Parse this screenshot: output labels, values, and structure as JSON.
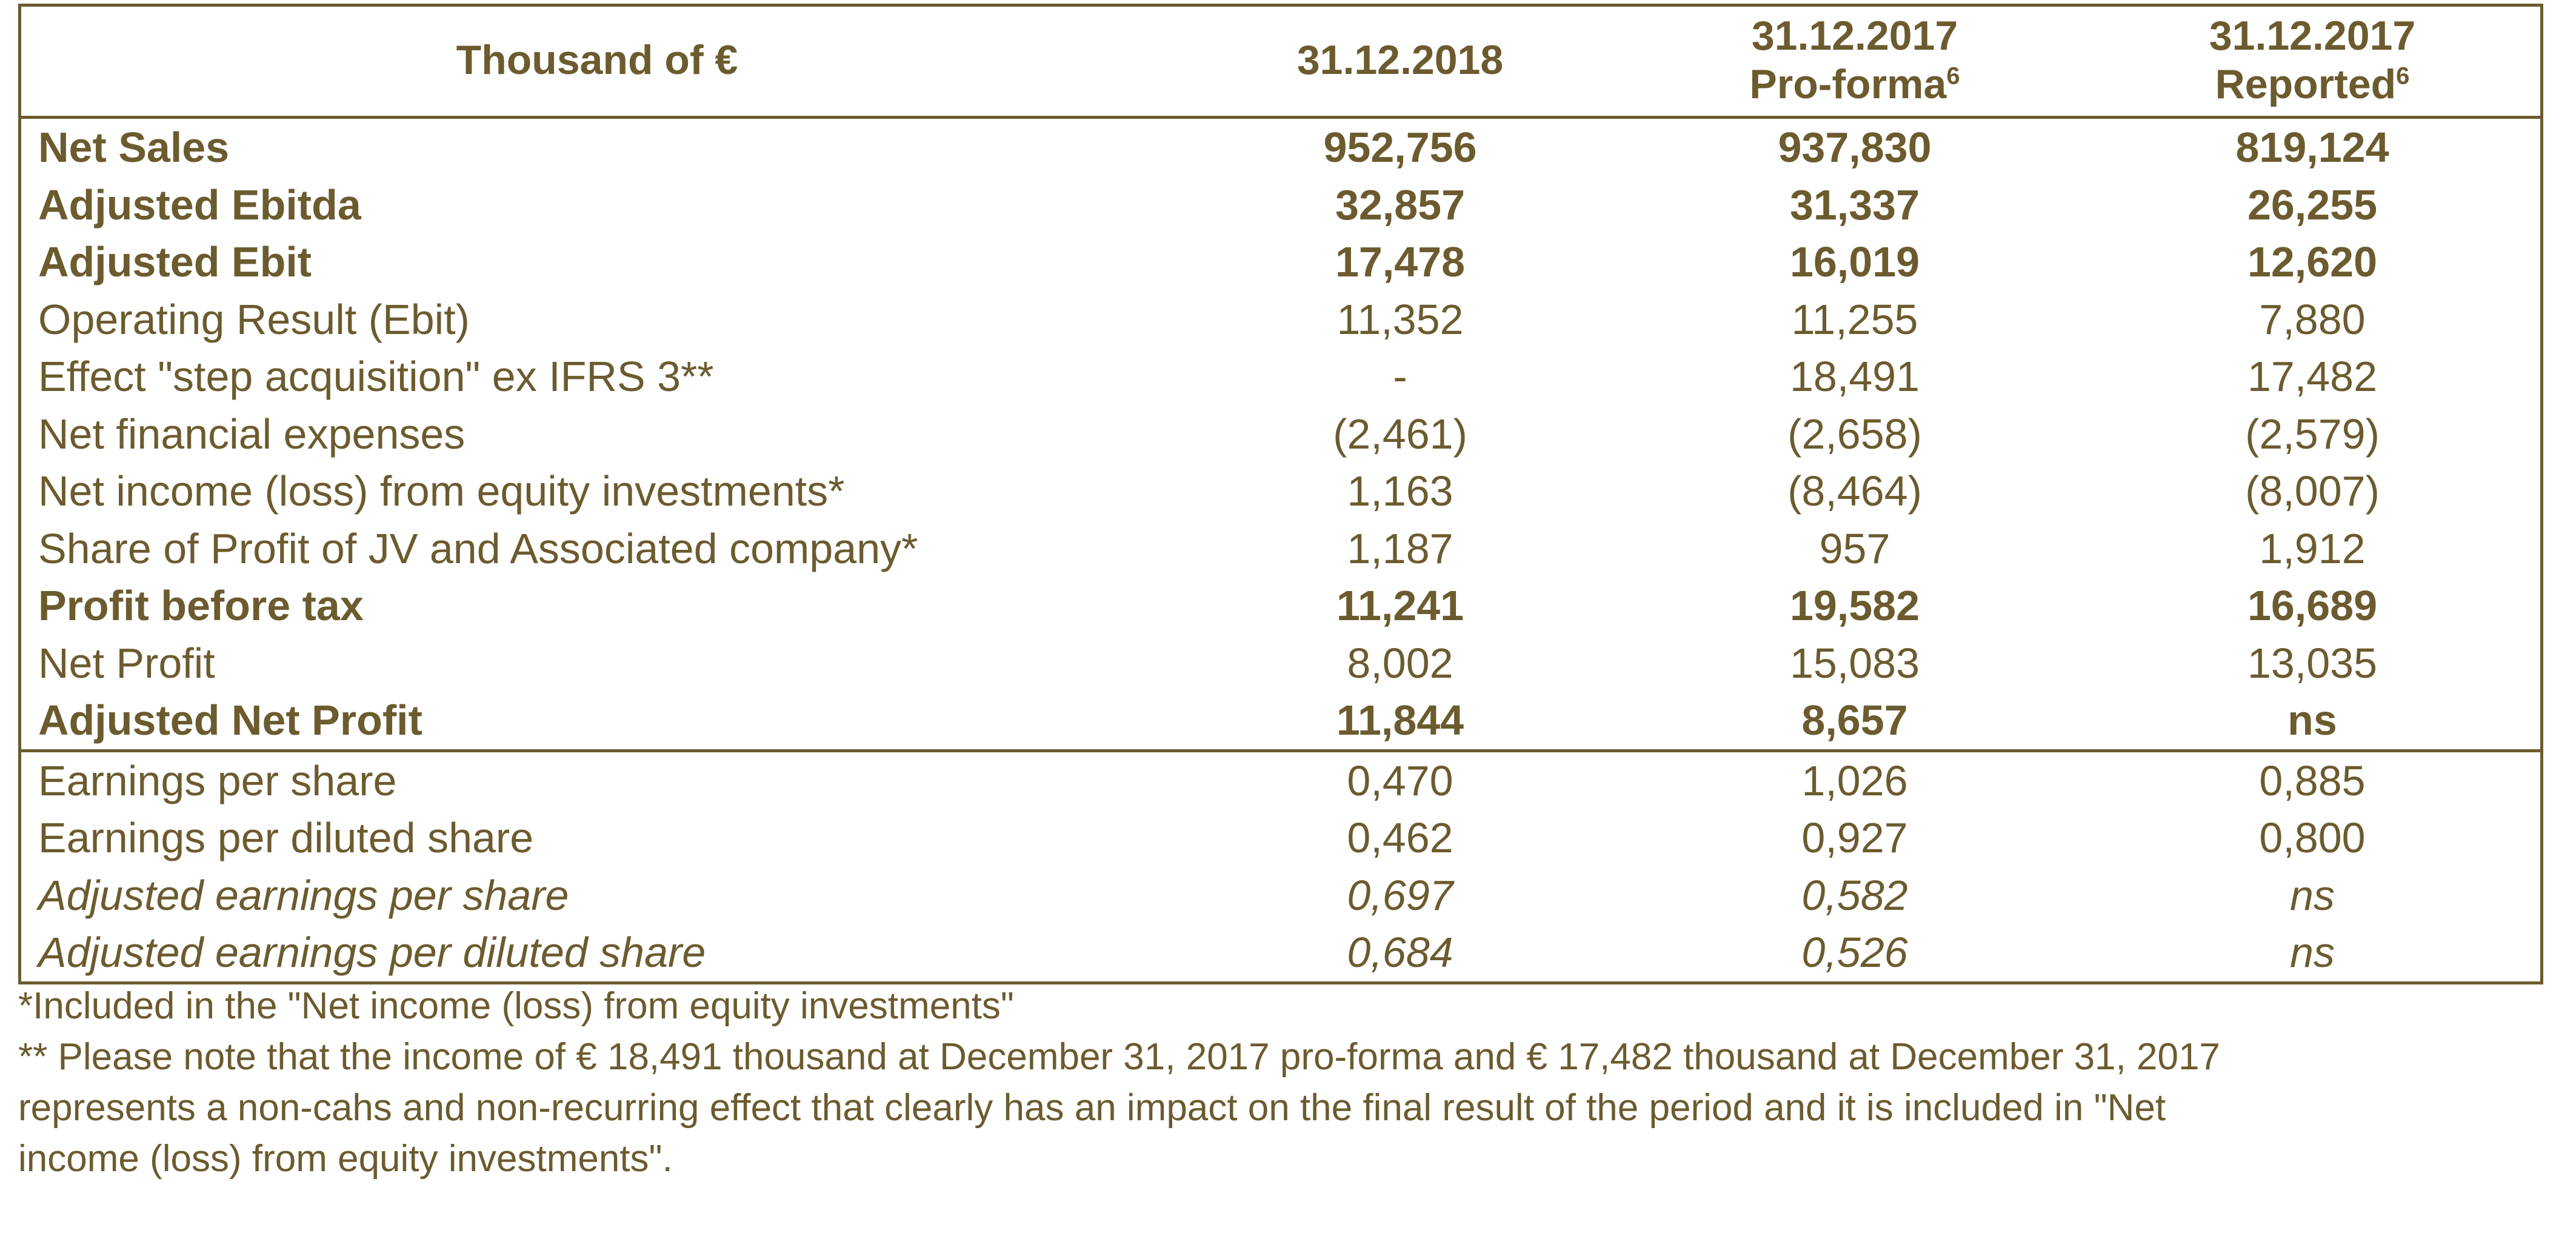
{
  "header": {
    "label_col": "Thousand of €",
    "col1": "31.12.2018",
    "col2_line1": "31.12.2017",
    "col2_line2": "Pro-forma",
    "col2_sup": "6",
    "col3_line1": "31.12.2017",
    "col3_line2": "Reported",
    "col3_sup": "6"
  },
  "rows": [
    {
      "label": "Net Sales",
      "v1": "952,756",
      "v2": "937,830",
      "v3": "819,124",
      "style": "bold"
    },
    {
      "label": "Adjusted Ebitda",
      "v1": "32,857",
      "v2": "31,337",
      "v3": "26,255",
      "style": "bold"
    },
    {
      "label": "Adjusted Ebit",
      "v1": "17,478",
      "v2": "16,019",
      "v3": "12,620",
      "style": "bold"
    },
    {
      "label": "Operating Result (Ebit)",
      "v1": "11,352",
      "v2": "11,255",
      "v3": "7,880",
      "style": "normal"
    },
    {
      "label": "Effect \"step acquisition\" ex IFRS 3**",
      "v1": "-",
      "v2": "18,491",
      "v3": "17,482",
      "style": "normal"
    },
    {
      "label": "Net financial expenses",
      "v1": "(2,461)",
      "v2": "(2,658)",
      "v3": "(2,579)",
      "style": "normal"
    },
    {
      "label": "Net income (loss) from equity investments*",
      "v1": "1,163",
      "v2": "(8,464)",
      "v3": "(8,007)",
      "style": "normal"
    },
    {
      "label": "Share of Profit of JV and Associated company*",
      "v1": "1,187",
      "v2": "957",
      "v3": "1,912",
      "style": "normal"
    },
    {
      "label": "Profit before tax",
      "v1": "11,241",
      "v2": "19,582",
      "v3": "16,689",
      "style": "bold"
    },
    {
      "label": "Net Profit",
      "v1": "8,002",
      "v2": "15,083",
      "v3": "13,035",
      "style": "normal"
    },
    {
      "label": "Adjusted Net Profit",
      "v1": "11,844",
      "v2": "8,657",
      "v3": "ns",
      "style": "bold"
    },
    {
      "label": "Earnings per share",
      "v1": "0,470",
      "v2": "1,026",
      "v3": "0,885",
      "style": "normal"
    },
    {
      "label": "Earnings per diluted share",
      "v1": "0,462",
      "v2": "0,927",
      "v3": "0,800",
      "style": "normal"
    },
    {
      "label": "Adjusted earnings per share",
      "v1": "0,697",
      "v2": "0,582",
      "v3": "ns",
      "style": "italic"
    },
    {
      "label": "Adjusted earnings per diluted share",
      "v1": "0,684",
      "v2": "0,526",
      "v3": "ns",
      "style": "italic"
    }
  ],
  "notes": {
    "note1": "*Included in the \"Net income (loss) from equity investments\"",
    "note2_line1": "** Please note that the income of € 18,491 thousand at December 31, 2017 pro-forma and € 17,482 thousand at December 31, 2017",
    "note2_line2": "represents a non-cahs and non-recurring effect that clearly has an impact on the final result of the period and it is included in \"Net",
    "note2_line3": "income (loss) from equity investments\"."
  },
  "colors": {
    "text": "#6b5b2e",
    "background": "#ffffff"
  }
}
